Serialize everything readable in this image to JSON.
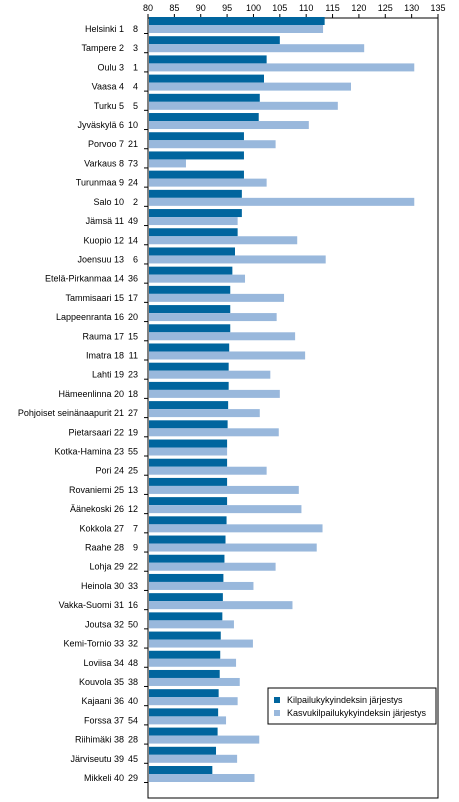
{
  "chart_data": {
    "type": "bar",
    "orientation": "horizontal",
    "title": "",
    "xlim": [
      80,
      135
    ],
    "xticks": [
      80,
      85,
      90,
      95,
      100,
      105,
      110,
      115,
      120,
      125,
      130,
      135
    ],
    "grid": false,
    "legend_position": "bottom-right",
    "categories": [
      "Helsinki 1",
      "Tampere 2",
      "Oulu 3",
      "Vaasa 4",
      "Turku 5",
      "Jyväskylä 6",
      "Porvoo 7",
      "Varkaus 8",
      "Turunmaa 9",
      "Salo 10",
      "Jämsä 11",
      "Kuopio 12",
      "Joensuu 13",
      "Etelä-Pirkanmaa 14",
      "Tammisaari 15",
      "Lappeenranta 16",
      "Rauma 17",
      "Imatra 18",
      "Lahti 19",
      "Hämeenlinna 20",
      "Pohjoiset seinänaapurit 21",
      "Pietarsaari 22",
      "Kotka-Hamina 23",
      "Pori 24",
      "Rovaniemi 25",
      "Äänekoski 26",
      "Kokkola 27",
      "Raahe 28",
      "Lohja 29",
      "Heinola 30",
      "Vakka-Suomi 31",
      "Joutsa 32",
      "Kemi-Tornio 33",
      "Loviisa 34",
      "Kouvola 35",
      "Kajaani 36",
      "Forssa 37",
      "Riihimäki 38",
      "Järviseutu 39",
      "Mikkeli 40"
    ],
    "second_ranks": [
      "8",
      "3",
      "1",
      "4",
      "5",
      "10",
      "21",
      "73",
      "24",
      "2",
      "49",
      "14",
      "6",
      "36",
      "17",
      "20",
      "15",
      "11",
      "23",
      "18",
      "27",
      "19",
      "55",
      "25",
      "13",
      "12",
      "7",
      "9",
      "22",
      "33",
      "16",
      "50",
      "32",
      "48",
      "38",
      "40",
      "54",
      "28",
      "45",
      "29"
    ],
    "series": [
      {
        "name": "Kilpailukykyindeksin järjestys",
        "color": "#00659e",
        "values": [
          113.5,
          105,
          102.5,
          102,
          101.2,
          101,
          98.2,
          98.2,
          98.2,
          97.8,
          97.8,
          97,
          96.5,
          96,
          95.6,
          95.6,
          95.6,
          95.4,
          95.3,
          95.3,
          95.2,
          95.1,
          95,
          95,
          95,
          95,
          94.9,
          94.7,
          94.5,
          94.3,
          94.2,
          94.1,
          93.8,
          93.7,
          93.6,
          93.4,
          93.3,
          93.2,
          92.9,
          92.2
        ]
      },
      {
        "name": "Kasvukilpailukykyindeksin järjestys",
        "color": "#99b8dc",
        "values": [
          113.2,
          121,
          130.5,
          118.5,
          116,
          110.5,
          104.2,
          87.2,
          102.5,
          130.5,
          97,
          108.3,
          113.7,
          98.4,
          105.8,
          104.4,
          107.9,
          109.8,
          103.2,
          105,
          101.2,
          104.8,
          95,
          102.5,
          108.6,
          109.1,
          113.1,
          112,
          104.2,
          100,
          107.4,
          96.3,
          99.9,
          96.7,
          97.4,
          97,
          94.8,
          101.1,
          96.9,
          100.2
        ]
      }
    ]
  }
}
